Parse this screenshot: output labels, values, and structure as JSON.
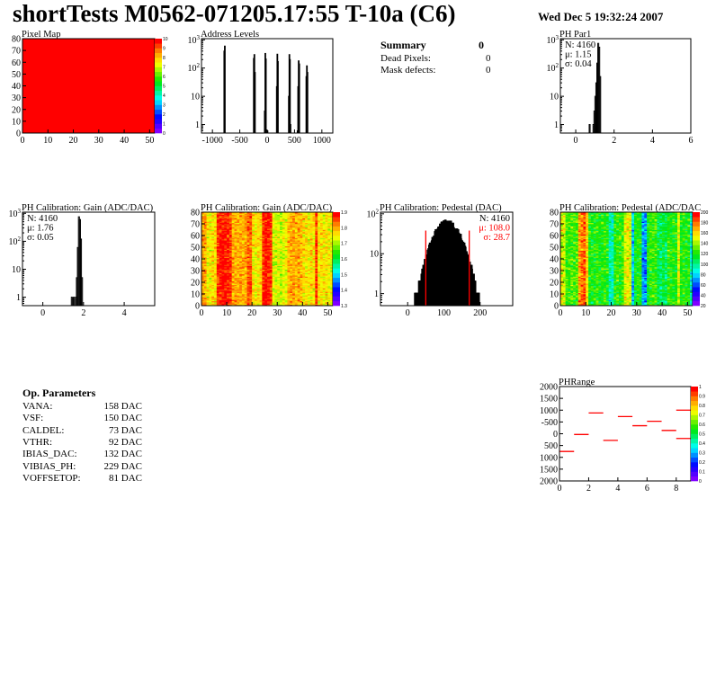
{
  "header": {
    "title": "shortTests M0562-071205.17:55 T-10a (C6)",
    "date": "Wed Dec  5 19:32:24 2007"
  },
  "summary": {
    "title": "Summary",
    "total": "0",
    "rows": [
      {
        "label": "Dead Pixels:",
        "value": "0"
      },
      {
        "label": "Mask defects:",
        "value": "0"
      }
    ]
  },
  "op_parameters": {
    "title": "Op. Parameters",
    "rows": [
      {
        "label": "VANA:",
        "value": "158 DAC"
      },
      {
        "label": "VSF:",
        "value": "150 DAC"
      },
      {
        "label": "CALDEL:",
        "value": "73 DAC"
      },
      {
        "label": "VTHR:",
        "value": "92 DAC"
      },
      {
        "label": "IBIAS_DAC:",
        "value": "132 DAC"
      },
      {
        "label": "VIBIAS_PH:",
        "value": "229 DAC"
      },
      {
        "label": "VOFFSETOP:",
        "value": "81 DAC"
      }
    ]
  },
  "colors": {
    "hist_line": "#000000",
    "fit": "#ff0000",
    "map_fill": "#ff0000"
  },
  "chart_data": [
    {
      "id": "pixel-map",
      "type": "heatmap",
      "title": "Pixel Map",
      "xlim": [
        0,
        52
      ],
      "ylim": [
        0,
        80
      ],
      "xticks": [
        0,
        10,
        20,
        30,
        40,
        50
      ],
      "yticks": [
        0,
        10,
        20,
        30,
        40,
        50,
        60,
        70,
        80
      ],
      "zlim": [
        0,
        10
      ],
      "zticks": [
        0,
        1,
        2,
        3,
        4,
        5,
        6,
        7,
        8,
        9,
        10
      ],
      "uniform_value": 10
    },
    {
      "id": "address-levels",
      "type": "bar",
      "title": "Address Levels",
      "xlim": [
        -1200,
        1200
      ],
      "ylog": true,
      "ylim": [
        0.5,
        1100
      ],
      "xticks": [
        -1000,
        -500,
        0,
        500,
        1000
      ],
      "yticks": [
        1,
        10,
        100,
        1000
      ],
      "ytick_labels": [
        "1",
        "10",
        "10^2",
        "10^3"
      ],
      "bin_width": 10,
      "bins": [
        [
          -790,
          400
        ],
        [
          -780,
          600
        ],
        [
          -250,
          220
        ],
        [
          -240,
          300
        ],
        [
          -230,
          70
        ],
        [
          -50,
          3
        ],
        [
          -40,
          330
        ],
        [
          -30,
          210
        ],
        [
          0,
          0.6
        ],
        [
          170,
          22
        ],
        [
          180,
          310
        ],
        [
          190,
          170
        ],
        [
          390,
          10
        ],
        [
          400,
          300
        ],
        [
          410,
          200
        ],
        [
          420,
          1
        ],
        [
          550,
          0.6
        ],
        [
          560,
          22
        ],
        [
          570,
          180
        ],
        [
          580,
          140
        ],
        [
          710,
          50
        ],
        [
          720,
          120
        ],
        [
          730,
          70
        ]
      ]
    },
    {
      "id": "ph-par1",
      "type": "bar",
      "title": "PH Par1",
      "xlim": [
        -0.8,
        6
      ],
      "ylog": true,
      "ylim": [
        0.5,
        1100
      ],
      "xticks": [
        0,
        2,
        4,
        6
      ],
      "yticks": [
        1,
        10,
        100,
        1000
      ],
      "ytick_labels": [
        "1",
        "10",
        "10^2",
        "10^3"
      ],
      "bin_width": 0.05,
      "stats": {
        "n": "N: 4160",
        "mu": "μ: 1.15",
        "sigma": "σ: 0.04"
      },
      "bins": [
        [
          0.7,
          1
        ],
        [
          0.9,
          1
        ],
        [
          0.95,
          3
        ],
        [
          1.0,
          10
        ],
        [
          1.05,
          30
        ],
        [
          1.1,
          150
        ],
        [
          1.15,
          750
        ],
        [
          1.2,
          550
        ],
        [
          1.25,
          50
        ]
      ]
    },
    {
      "id": "gain-hist",
      "type": "bar",
      "title": "PH Calibration: Gain (ADC/DAC)",
      "xlim": [
        -1,
        5.5
      ],
      "ylog": true,
      "ylim": [
        0.5,
        1100
      ],
      "xticks": [
        0,
        2,
        4
      ],
      "yticks": [
        1,
        10,
        100,
        1000
      ],
      "ytick_labels": [
        "1",
        "10",
        "10^2",
        "10^3"
      ],
      "bin_width": 0.05,
      "stats": {
        "n": "N: 4160",
        "mu": "μ: 1.76",
        "sigma": "σ: 0.05"
      },
      "bins": [
        [
          1.4,
          1
        ],
        [
          1.5,
          1
        ],
        [
          1.6,
          1
        ],
        [
          1.65,
          5
        ],
        [
          1.7,
          60
        ],
        [
          1.75,
          750
        ],
        [
          1.8,
          600
        ],
        [
          1.85,
          120
        ],
        [
          1.9,
          5
        ]
      ]
    },
    {
      "id": "gain-map",
      "type": "heatmap",
      "title": "PH Calibration: Gain (ADC/DAC)",
      "xlim": [
        0,
        52
      ],
      "ylim": [
        0,
        80
      ],
      "xticks": [
        0,
        10,
        20,
        30,
        40,
        50
      ],
      "yticks": [
        0,
        10,
        20,
        30,
        40,
        50,
        60,
        70,
        80
      ],
      "zlim": [
        1.3,
        1.9
      ],
      "zticks": [
        1.3,
        1.4,
        1.5,
        1.6,
        1.7,
        1.8,
        1.9
      ],
      "noise": 0.04,
      "column_means": [
        1.8,
        1.8,
        1.75,
        1.75,
        1.76,
        1.76,
        1.86,
        1.87,
        1.88,
        1.88,
        1.87,
        1.86,
        1.8,
        1.8,
        1.79,
        1.8,
        1.79,
        1.8,
        1.84,
        1.84,
        1.76,
        1.75,
        1.76,
        1.76,
        1.87,
        1.88,
        1.88,
        1.86,
        1.73,
        1.72,
        1.73,
        1.72,
        1.73,
        1.74,
        1.79,
        1.8,
        1.8,
        1.79,
        1.8,
        1.78,
        1.76,
        1.76,
        1.75,
        1.76,
        1.76,
        1.86,
        1.75,
        1.76,
        1.75,
        1.76,
        1.75,
        1.74
      ]
    },
    {
      "id": "pedestal-hist",
      "type": "bar",
      "title": "PH Calibration: Pedestal (DAC)",
      "xlim": [
        -75,
        290
      ],
      "ylog": true,
      "ylim": [
        0.5,
        110
      ],
      "xticks": [
        0,
        100,
        200
      ],
      "yticks": [
        1,
        10,
        100
      ],
      "ytick_labels": [
        "1",
        "10",
        "10^2"
      ],
      "bin_width": 1,
      "stats": {
        "n": "N: 4160",
        "mu": "μ: 108.0",
        "sigma": "σ: 28.7"
      },
      "fit": {
        "mean": 108.0,
        "sigma": 28.7,
        "entries": 4160,
        "range": [
          50,
          170
        ]
      }
    },
    {
      "id": "pedestal-map",
      "type": "heatmap",
      "title": "PH Calibration: Pedestal (ADC/DAC",
      "xlim": [
        0,
        52
      ],
      "ylim": [
        0,
        80
      ],
      "xticks": [
        0,
        10,
        20,
        30,
        40,
        50
      ],
      "yticks": [
        0,
        10,
        20,
        30,
        40,
        50,
        60,
        70,
        80
      ],
      "zlim": [
        20,
        200
      ],
      "zticks": [
        20,
        40,
        60,
        80,
        100,
        120,
        140,
        160,
        180,
        200
      ],
      "noise": 14,
      "column_means": [
        150,
        148,
        125,
        122,
        128,
        124,
        130,
        170,
        178,
        182,
        160,
        122,
        118,
        120,
        125,
        118,
        120,
        124,
        118,
        95,
        92,
        122,
        125,
        120,
        128,
        150,
        152,
        148,
        78,
        118,
        122,
        120,
        70,
        72,
        118,
        124,
        122,
        126,
        110,
        108,
        112,
        106,
        124,
        120,
        122,
        118,
        150,
        120,
        124,
        118,
        122,
        88
      ]
    },
    {
      "id": "ph-range",
      "type": "step",
      "title": "PHRange",
      "xlim": [
        0,
        9
      ],
      "ylim": [
        -2000,
        2000
      ],
      "xticks": [
        0,
        2,
        4,
        6,
        8
      ],
      "yticks": [
        -2000,
        -1500,
        -1000,
        -500,
        0,
        500,
        1000,
        1500,
        2000
      ],
      "ytick_labels": [
        "2000",
        "1500",
        "1000",
        "500",
        "0",
        "-500",
        "1000",
        "1500",
        "2000"
      ],
      "zlim": [
        0,
        1
      ],
      "zticks": [
        0,
        0.1,
        0.2,
        0.3,
        0.4,
        0.5,
        0.6,
        0.7,
        0.8,
        0.9,
        1
      ],
      "segments": [
        [
          0,
          1,
          -750
        ],
        [
          1,
          2,
          -30
        ],
        [
          2,
          3,
          880
        ],
        [
          3,
          4,
          -280
        ],
        [
          4,
          5,
          730
        ],
        [
          5,
          6,
          340
        ],
        [
          6,
          7,
          530
        ],
        [
          7,
          8,
          140
        ],
        [
          8,
          9,
          1000
        ],
        [
          8,
          9,
          -200
        ]
      ]
    }
  ]
}
